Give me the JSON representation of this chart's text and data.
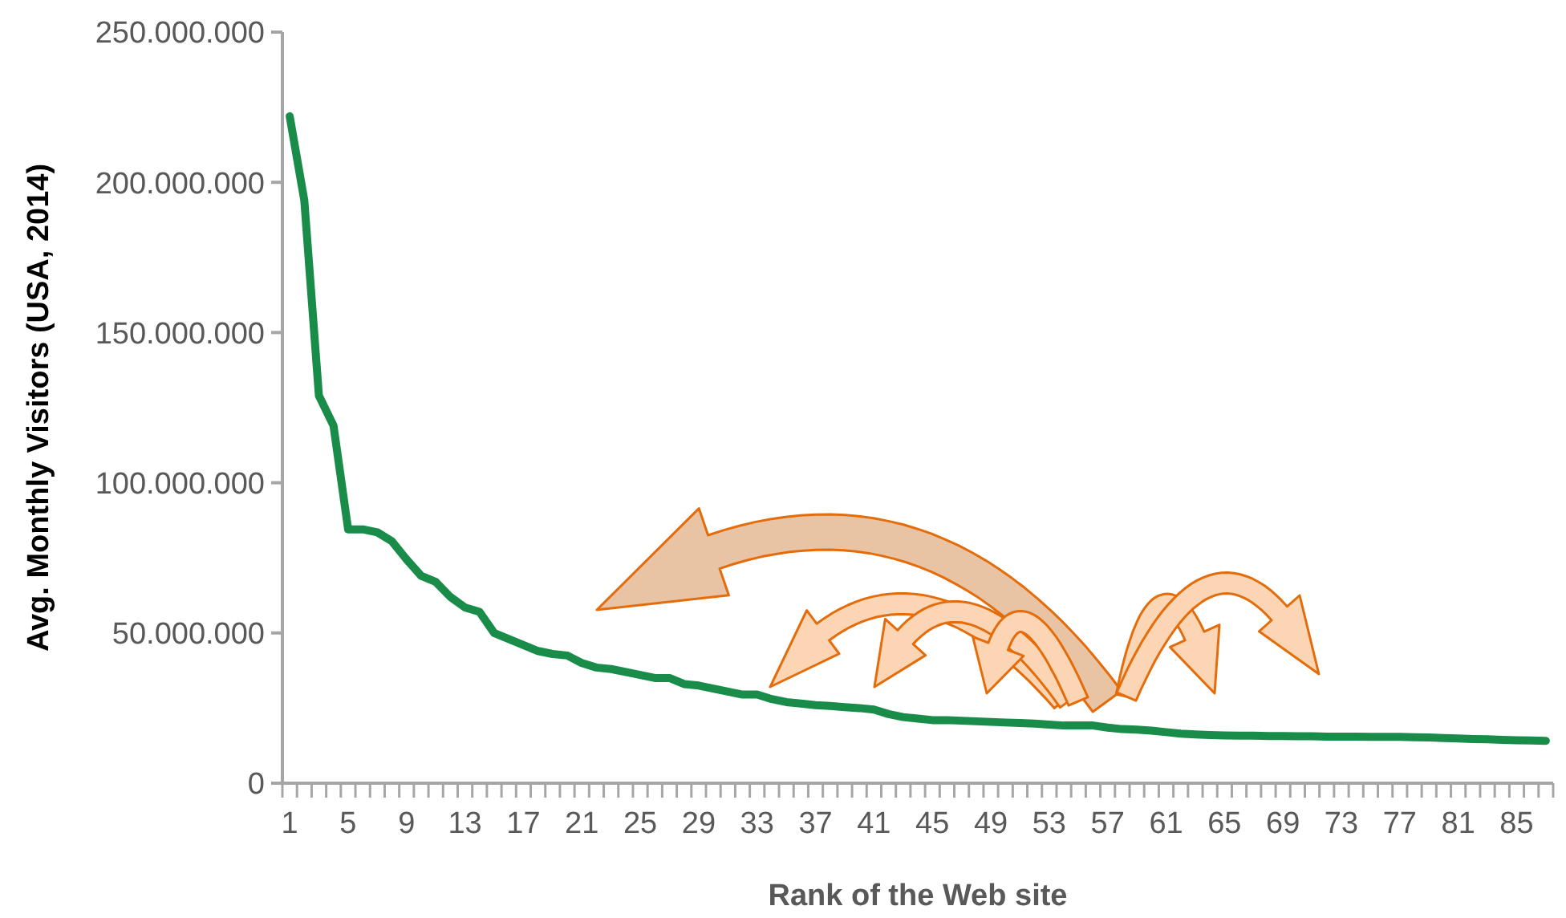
{
  "chart_data": {
    "type": "line",
    "xlabel": "Rank of the Web site",
    "ylabel": "Avg. Monthly Visitors (USA, 2014)",
    "categories": [
      "1",
      null,
      null,
      null,
      "5",
      null,
      null,
      null,
      "9",
      null,
      null,
      null,
      "13",
      null,
      null,
      null,
      "17",
      null,
      null,
      null,
      "21",
      null,
      null,
      null,
      "25",
      null,
      null,
      null,
      "29",
      null,
      null,
      null,
      "33",
      null,
      null,
      null,
      "37",
      null,
      null,
      null,
      "41",
      null,
      null,
      null,
      "45",
      null,
      null,
      null,
      "49",
      null,
      null,
      null,
      "53",
      null,
      null,
      null,
      "57",
      null,
      null,
      null,
      "61",
      null,
      null,
      null,
      "65",
      null,
      null,
      null,
      "69",
      null,
      null,
      null,
      "73",
      null,
      null,
      null,
      "77",
      null,
      null,
      null,
      "81",
      null,
      null,
      null,
      "85",
      null,
      null
    ],
    "series": [
      {
        "color": "#1a8c4a",
        "values": [
          222000000,
          194000000,
          129000000,
          119000000,
          84500000,
          84500000,
          83500000,
          80500000,
          74500000,
          69000000,
          67000000,
          62000000,
          58500000,
          57000000,
          50000000,
          48000000,
          46000000,
          44000000,
          43000000,
          42500000,
          40000000,
          38500000,
          38000000,
          37000000,
          36000000,
          35000000,
          35000000,
          33000000,
          32500000,
          31500000,
          30500000,
          29500000,
          29500000,
          28000000,
          27000000,
          26500000,
          26000000,
          25700000,
          25300000,
          25000000,
          24500000,
          23000000,
          22000000,
          21500000,
          21000000,
          21000000,
          20800000,
          20600000,
          20400000,
          20200000,
          20000000,
          19800000,
          19500000,
          19200000,
          19200000,
          19200000,
          18500000,
          18000000,
          17800000,
          17500000,
          17000000,
          16500000,
          16200000,
          16000000,
          15900000,
          15800000,
          15800000,
          15700000,
          15700000,
          15600000,
          15600000,
          15500000,
          15500000,
          15500000,
          15400000,
          15400000,
          15400000,
          15300000,
          15200000,
          15000000,
          14900000,
          14700000,
          14600000,
          14400000,
          14300000,
          14200000,
          14100000
        ]
      }
    ],
    "ylim": [
      0,
      250000000
    ],
    "yticks": [
      0,
      {
        "value": 50000000,
        "label": "50.000.000"
      },
      {
        "value": 100000000,
        "label": "100.000.000"
      },
      {
        "value": 150000000,
        "label": "150.000.000"
      },
      {
        "value": 200000000,
        "label": "200.000.000"
      },
      {
        "value": 250000000,
        "label": "250.000.000"
      }
    ],
    "grid": false,
    "marker": "none",
    "line_style": "solid"
  }
}
